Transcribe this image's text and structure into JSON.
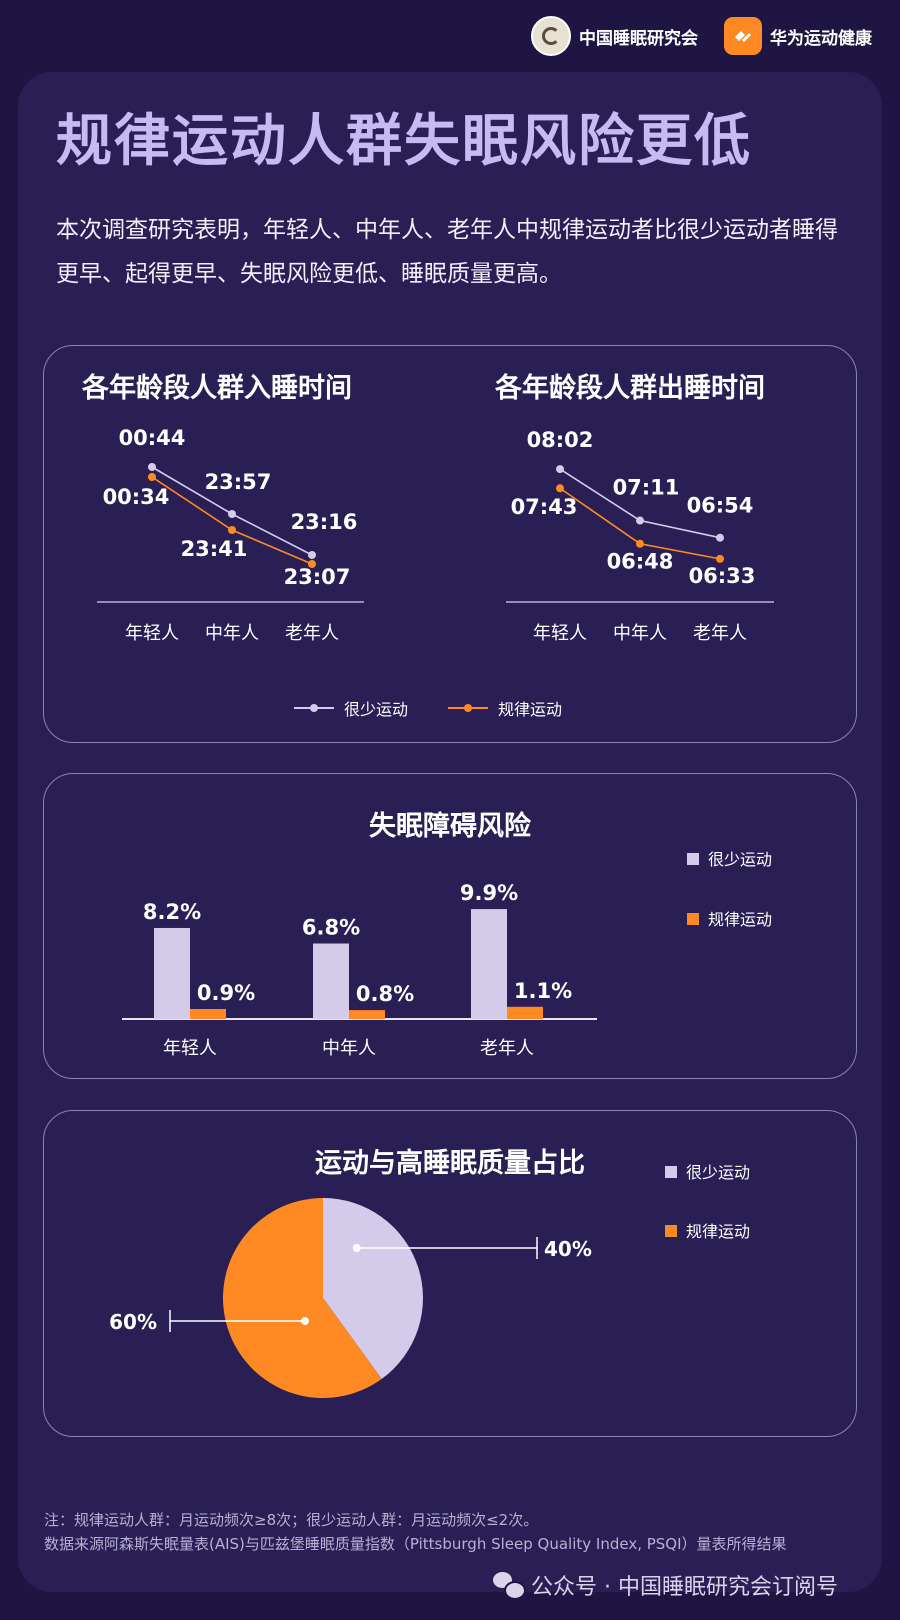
{
  "header": {
    "org1": "中国睡眠研究会",
    "org2": "华为运动健康"
  },
  "headline": "规律运动人群失眠风险更低",
  "intro": "本次调查研究表明，年轻人、中年人、老年人中规律运动者比很少运动者睡得更早、起得更早、失眠风险更低、睡眠质量更高。",
  "legend": {
    "rare": "很少运动",
    "regular": "规律运动"
  },
  "colors": {
    "rare": "#d4cbeb",
    "regular": "#ff8a24",
    "background": "#1e1542",
    "card": "#2a1f55",
    "border": "#8a81b6"
  },
  "chart_data": [
    {
      "type": "line",
      "title": "各年龄段人群入睡时间",
      "categories": [
        "年轻人",
        "中年人",
        "老年人"
      ],
      "series": [
        {
          "name": "很少运动",
          "values": [
            "00:44",
            "23:57",
            "23:16"
          ]
        },
        {
          "name": "规律运动",
          "values": [
            "00:34",
            "23:41",
            "23:07"
          ]
        }
      ]
    },
    {
      "type": "line",
      "title": "各年龄段人群出睡时间",
      "categories": [
        "年轻人",
        "中年人",
        "老年人"
      ],
      "series": [
        {
          "name": "很少运动",
          "values": [
            "08:02",
            "07:11",
            "06:54"
          ]
        },
        {
          "name": "规律运动",
          "values": [
            "07:43",
            "06:48",
            "06:33"
          ]
        }
      ]
    },
    {
      "type": "bar",
      "title": "失眠障碍风险",
      "categories": [
        "年轻人",
        "中年人",
        "老年人"
      ],
      "series": [
        {
          "name": "很少运动",
          "values": [
            8.2,
            6.8,
            9.9
          ]
        },
        {
          "name": "规律运动",
          "values": [
            0.9,
            0.8,
            1.1
          ]
        }
      ],
      "ylim": [
        0,
        10
      ]
    },
    {
      "type": "pie",
      "title": "运动与高睡眠质量占比",
      "labels": [
        "很少运动",
        "规律运动"
      ],
      "values": [
        40,
        60
      ]
    }
  ],
  "footnote": {
    "line1": "注：规律运动人群：月运动频次≥8次；很少运动人群：月运动频次≤2次。",
    "line2": "数据来源阿森斯失眠量表(AIS)与匹兹堡睡眠质量指数（Pittsburgh Sleep Quality Index, PSQI）量表所得结果"
  },
  "watermark": "公众号 · 中国睡眠研究会订阅号"
}
